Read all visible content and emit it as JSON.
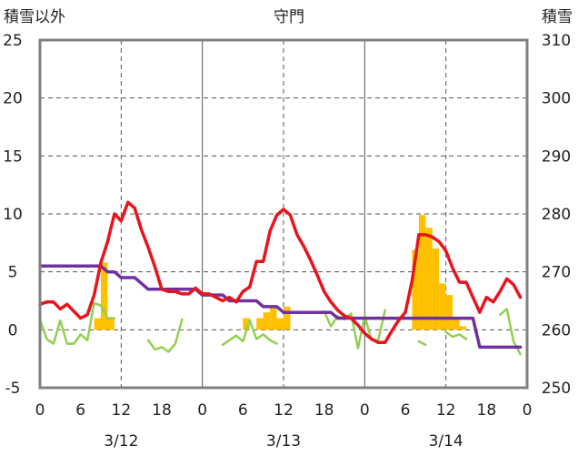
{
  "chart_data": {
    "type": "line",
    "title": "守門",
    "ylabel_left": "積雪以外",
    "ylabel_right": "積雪",
    "ylim_left": [
      -5,
      25
    ],
    "ylim_right": [
      250,
      310
    ],
    "yticks_left": [
      "25",
      "20",
      "15",
      "10",
      "5",
      "0",
      "-5"
    ],
    "yticks_right": [
      "310",
      "300",
      "290",
      "280",
      "270",
      "260",
      "250"
    ],
    "x_range_hours": [
      0,
      72
    ],
    "xtick_labels": [
      "0",
      "6",
      "12",
      "18",
      "0",
      "6",
      "12",
      "18",
      "0",
      "6",
      "12",
      "18",
      "0"
    ],
    "dates": [
      "3/12",
      "3/13",
      "3/14"
    ],
    "grid": true,
    "colors": {
      "temperature": "#e8141c",
      "snow_depth": "#7030a0",
      "wind": "#92d050",
      "precipitation": "#ffc000",
      "grid": "#555555",
      "frame": "#808080"
    },
    "series": [
      {
        "key": "temperature",
        "axis": "left",
        "x": [
          0,
          1,
          2,
          3,
          4,
          5,
          6,
          7,
          8,
          9,
          10,
          11,
          12,
          13,
          14,
          15,
          16,
          17,
          18,
          19,
          20,
          21,
          22,
          23,
          24,
          25,
          26,
          27,
          28,
          29,
          30,
          31,
          32,
          33,
          34,
          35,
          36,
          37,
          38,
          39,
          40,
          41,
          42,
          43,
          44,
          45,
          46,
          47,
          48,
          49,
          50,
          51,
          52,
          53,
          54,
          55,
          56,
          57,
          58,
          59,
          60,
          61,
          62,
          63,
          64,
          65,
          66,
          67,
          68,
          69,
          70,
          71
        ],
        "y": [
          2.2,
          2.4,
          2.4,
          1.8,
          2.2,
          1.6,
          1.0,
          1.3,
          3.0,
          5.8,
          7.6,
          10.0,
          9.4,
          11.0,
          10.5,
          8.6,
          7.1,
          5.4,
          3.5,
          3.3,
          3.3,
          3.1,
          3.1,
          3.6,
          3.1,
          3.1,
          2.8,
          2.5,
          2.8,
          2.4,
          3.3,
          3.7,
          5.9,
          5.9,
          8.5,
          9.9,
          10.4,
          9.9,
          8.2,
          7.2,
          6.0,
          4.7,
          3.3,
          2.4,
          1.7,
          1.2,
          1.0,
          0.4,
          -0.3,
          -0.8,
          -1.1,
          -1.1,
          -0.1,
          0.8,
          1.5,
          4.2,
          8.2,
          8.2,
          8.0,
          7.6,
          6.8,
          5.3,
          4.1,
          4.1,
          2.8,
          1.5,
          2.8,
          2.4,
          3.3,
          4.4,
          3.9,
          2.8
        ]
      },
      {
        "key": "snow_depth",
        "axis": "right",
        "x": [
          0,
          1,
          2,
          3,
          4,
          5,
          6,
          7,
          8,
          9,
          10,
          11,
          12,
          13,
          14,
          15,
          16,
          17,
          18,
          19,
          20,
          21,
          22,
          23,
          24,
          25,
          26,
          27,
          28,
          29,
          30,
          31,
          32,
          33,
          34,
          35,
          36,
          37,
          38,
          39,
          40,
          41,
          42,
          43,
          44,
          45,
          46,
          47,
          48,
          49,
          50,
          51,
          52,
          53,
          54,
          55,
          56,
          57,
          58,
          59,
          60,
          61,
          62,
          63,
          64,
          65,
          66,
          67,
          68,
          69,
          70,
          71
        ],
        "y": [
          271,
          271,
          271,
          271,
          271,
          271,
          271,
          271,
          271,
          271,
          270,
          270,
          269,
          269,
          269,
          268,
          267,
          267,
          267,
          267,
          267,
          267,
          267,
          267,
          266,
          266,
          266,
          266,
          265,
          265,
          265,
          265,
          265,
          264,
          264,
          264,
          263,
          263,
          263,
          263,
          263,
          263,
          263,
          263,
          262,
          262,
          262,
          262,
          262,
          262,
          262,
          262,
          262,
          262,
          262,
          262,
          262,
          262,
          262,
          262,
          262,
          262,
          262,
          262,
          262,
          257,
          257,
          257,
          257,
          257,
          257,
          257
        ]
      },
      {
        "key": "wind",
        "axis": "left",
        "x": [
          0,
          1,
          2,
          3,
          4,
          5,
          6,
          7,
          8,
          9,
          10,
          11,
          12,
          13,
          14,
          15,
          16,
          17,
          18,
          19,
          20,
          21,
          22,
          23,
          24,
          25,
          26,
          27,
          28,
          29,
          30,
          31,
          32,
          33,
          34,
          35,
          36,
          37,
          38,
          39,
          40,
          41,
          42,
          43,
          44,
          45,
          46,
          47,
          48,
          49,
          50,
          51,
          52,
          53,
          54,
          55,
          56,
          57,
          58,
          59,
          60,
          61,
          62,
          63,
          64,
          65,
          66,
          67,
          68,
          69,
          70,
          71
        ],
        "y": [
          0.9,
          -0.8,
          -1.2,
          0.8,
          -1.2,
          -1.2,
          -0.4,
          -0.9,
          2.3,
          2.1,
          1.0,
          1.0,
          null,
          null,
          null,
          null,
          -0.9,
          -1.7,
          -1.5,
          -1.9,
          -1.2,
          0.9,
          null,
          null,
          null,
          null,
          null,
          -1.3,
          -0.9,
          -0.5,
          -1.0,
          0.8,
          -0.8,
          -0.4,
          -0.9,
          -1.2,
          null,
          null,
          null,
          null,
          null,
          null,
          1.6,
          0.3,
          1.2,
          0.9,
          1.4,
          -1.6,
          1.2,
          -0.9,
          -0.9,
          1.7,
          null,
          null,
          null,
          null,
          -1.0,
          -1.3,
          null,
          null,
          -0.2,
          -0.6,
          -0.4,
          -0.8,
          null,
          null,
          null,
          null,
          1.3,
          1.8,
          -1.0,
          -2.1
        ]
      },
      {
        "key": "precipitation",
        "axis": "left",
        "type": "bar",
        "x": [
          8,
          9,
          10,
          30,
          32,
          33,
          34,
          35,
          36,
          55,
          56,
          57,
          58,
          59,
          60,
          61,
          62
        ],
        "y": [
          1.0,
          5.8,
          1.0,
          1.0,
          1.0,
          1.5,
          2.0,
          1.0,
          2.0,
          6.9,
          9.9,
          8.8,
          7.0,
          4.0,
          3.0,
          1.0,
          0.3
        ]
      }
    ]
  }
}
